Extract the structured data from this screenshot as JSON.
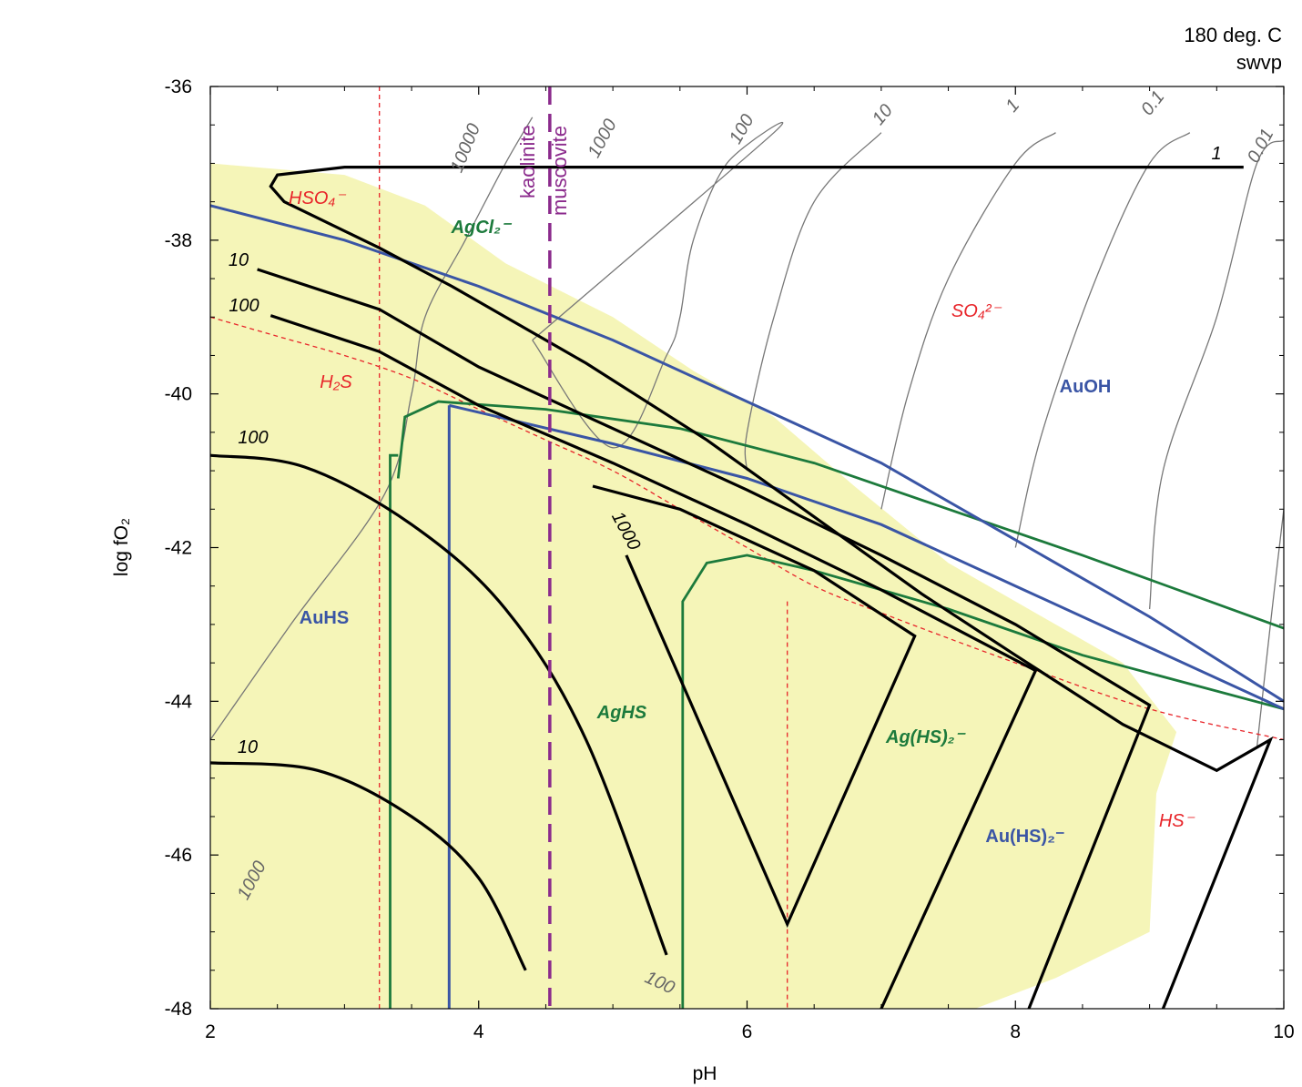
{
  "header": {
    "temperature": "180 deg. C",
    "pressure": "swvp"
  },
  "chart_data": {
    "type": "line",
    "title": "",
    "xlabel": "pH",
    "ylabel": "log fO₂",
    "xlim": [
      2,
      10
    ],
    "ylim": [
      -48,
      -36
    ],
    "xticks": [
      2,
      4,
      6,
      8,
      10
    ],
    "yticks": [
      -36,
      -38,
      -40,
      -42,
      -44,
      -46,
      -48
    ],
    "x_tick_labels": [
      "2",
      "4",
      "6",
      "8",
      "10"
    ],
    "y_tick_labels": [
      "-36",
      "-38",
      "-40",
      "-42",
      "-44",
      "-46",
      "-48"
    ],
    "grid": false,
    "colors": {
      "shaded_region": "#f5f5b8",
      "sulfur_species": "#e8252a",
      "gold_species": "#3a55a5",
      "silver_species": "#1c7a3c",
      "kaolinite_muscovite": "#8b2a8c",
      "solubility_contours": "#777777",
      "concentration_curves": "#000000"
    },
    "shaded_region": [
      [
        2,
        -37.0
      ],
      [
        3.0,
        -37.15
      ],
      [
        3.6,
        -37.55
      ],
      [
        4.2,
        -38.3
      ],
      [
        5.0,
        -39.0
      ],
      [
        5.6,
        -39.7
      ],
      [
        6.2,
        -40.3
      ],
      [
        6.8,
        -41.2
      ],
      [
        7.5,
        -42.2
      ],
      [
        8.2,
        -42.9
      ],
      [
        8.8,
        -43.5
      ],
      [
        9.2,
        -44.4
      ],
      [
        9.05,
        -45.2
      ],
      [
        9.0,
        -47.0
      ],
      [
        8.3,
        -47.6
      ],
      [
        7.7,
        -48
      ],
      [
        2,
        -48
      ]
    ],
    "sulfur_boundaries": [
      {
        "name": "HSO4-/H2S",
        "points": [
          [
            3.26,
            -36
          ],
          [
            3.26,
            -48
          ]
        ]
      },
      {
        "name": "SO4/H2S",
        "points": [
          [
            2,
            -39.0
          ],
          [
            2.5,
            -39.25
          ],
          [
            3.0,
            -39.5
          ],
          [
            3.5,
            -39.8
          ],
          [
            4.0,
            -40.2
          ],
          [
            4.5,
            -40.6
          ],
          [
            5.0,
            -41.0
          ],
          [
            5.5,
            -41.5
          ],
          [
            6.0,
            -42.0
          ],
          [
            6.5,
            -42.5
          ],
          [
            7.0,
            -42.85
          ],
          [
            8.0,
            -43.5
          ],
          [
            9.0,
            -44.1
          ],
          [
            10,
            -44.5
          ]
        ]
      },
      {
        "name": "H2S/HS-",
        "points": [
          [
            6.3,
            -42.7
          ],
          [
            6.3,
            -48
          ]
        ]
      }
    ],
    "kaolinite_muscovite_boundary": {
      "labels": [
        "kaolinite",
        "muscovite"
      ],
      "points": [
        [
          4.53,
          -36
        ],
        [
          4.53,
          -48
        ]
      ]
    },
    "gold_boundaries": [
      {
        "name": "AuHS/Au(HS)2-",
        "points": [
          [
            3.78,
            -40.15
          ],
          [
            3.78,
            -48
          ]
        ]
      },
      {
        "name": "AuOH upper",
        "points": [
          [
            2,
            -37.55
          ],
          [
            3.0,
            -38.0
          ],
          [
            4.0,
            -38.6
          ],
          [
            5.0,
            -39.3
          ],
          [
            6.0,
            -40.1
          ],
          [
            7.0,
            -40.9
          ],
          [
            8.0,
            -41.9
          ],
          [
            9.0,
            -42.9
          ],
          [
            10,
            -44.0
          ]
        ]
      },
      {
        "name": "AuOH lower",
        "points": [
          [
            3.78,
            -40.15
          ],
          [
            5.0,
            -40.65
          ],
          [
            6.0,
            -41.1
          ],
          [
            7.0,
            -41.7
          ],
          [
            8.0,
            -42.5
          ],
          [
            9.0,
            -43.3
          ],
          [
            10,
            -44.1
          ]
        ]
      }
    ],
    "silver_boundaries": [
      {
        "name": "AgCl2-/AgHS upper",
        "points": [
          [
            3.4,
            -41.1
          ],
          [
            3.45,
            -40.3
          ],
          [
            3.7,
            -40.1
          ],
          [
            4.5,
            -40.2
          ],
          [
            5.5,
            -40.45
          ],
          [
            6.5,
            -40.9
          ],
          [
            7.5,
            -41.5
          ],
          [
            8.5,
            -42.1
          ],
          [
            10,
            -43.05
          ]
        ]
      },
      {
        "name": "AgHS left",
        "points": [
          [
            3.34,
            -48
          ],
          [
            3.34,
            -40.8
          ],
          [
            3.4,
            -40.8
          ]
        ]
      },
      {
        "name": "Ag(HS)2- left",
        "points": [
          [
            5.52,
            -48
          ],
          [
            5.52,
            -42.7
          ],
          [
            5.7,
            -42.2
          ],
          [
            6.0,
            -42.1
          ],
          [
            6.5,
            -42.3
          ],
          [
            7.5,
            -42.8
          ],
          [
            8.5,
            -43.4
          ],
          [
            10,
            -44.1
          ]
        ]
      }
    ],
    "solubility_contours": [
      {
        "name": "10000",
        "label": "10000",
        "points": [
          [
            2,
            -44.5
          ],
          [
            2.6,
            -43.0
          ],
          [
            3.3,
            -41.3
          ],
          [
            3.5,
            -40.0
          ],
          [
            3.6,
            -39.0
          ],
          [
            3.9,
            -38.0
          ],
          [
            4.2,
            -37.0
          ],
          [
            4.4,
            -36.4
          ]
        ]
      },
      {
        "name": "1000",
        "label": "1000",
        "points": [
          [
            4.4,
            -39.3
          ],
          [
            5.0,
            -40.7
          ],
          [
            5.4,
            -39.5
          ],
          [
            5.5,
            -39.0
          ],
          [
            5.6,
            -38.0
          ],
          [
            5.85,
            -37.0
          ],
          [
            6.2,
            -36.6
          ],
          [
            4.4,
            -39.3
          ]
        ]
      },
      {
        "name": "100",
        "label": "100",
        "points": [
          [
            6.0,
            -41.0
          ],
          [
            6.0,
            -40.5
          ],
          [
            6.2,
            -39.0
          ],
          [
            6.5,
            -37.5
          ],
          [
            7.0,
            -36.6
          ]
        ]
      },
      {
        "name": "10",
        "label": "10",
        "points": [
          [
            7.0,
            -41.5
          ],
          [
            7.2,
            -40.0
          ],
          [
            7.5,
            -38.5
          ],
          [
            8.0,
            -37.0
          ],
          [
            8.3,
            -36.6
          ]
        ]
      },
      {
        "name": "1",
        "label": "1",
        "points": [
          [
            8.0,
            -42.0
          ],
          [
            8.2,
            -40.5
          ],
          [
            8.6,
            -38.5
          ],
          [
            9.0,
            -37.0
          ],
          [
            9.3,
            -36.6
          ]
        ]
      },
      {
        "name": "0.1",
        "label": "0.1",
        "points": [
          [
            9.0,
            -42.8
          ],
          [
            9.1,
            -41.0
          ],
          [
            9.5,
            -39.0
          ],
          [
            9.8,
            -37.0
          ],
          [
            10.0,
            -36.7
          ]
        ]
      },
      {
        "name": "0.01",
        "label": "0.01",
        "points": [
          [
            9.8,
            -44.6
          ],
          [
            9.9,
            -43.0
          ],
          [
            10,
            -41.5
          ]
        ]
      }
    ],
    "concentration_curves": [
      {
        "name": "1",
        "label": "1",
        "points": [
          [
            9.7,
            -37.05
          ],
          [
            6.0,
            -37.05
          ],
          [
            3.0,
            -37.05
          ],
          [
            2.5,
            -37.15
          ],
          [
            2.45,
            -37.3
          ],
          [
            2.55,
            -37.5
          ],
          [
            3.26,
            -38.1
          ],
          [
            3.8,
            -38.6
          ],
          [
            4.8,
            -39.6
          ],
          [
            5.7,
            -40.6
          ],
          [
            6.5,
            -41.6
          ],
          [
            7.3,
            -42.6
          ],
          [
            8.0,
            -43.4
          ],
          [
            8.8,
            -44.3
          ],
          [
            9.5,
            -44.9
          ],
          [
            9.9,
            -44.5
          ],
          [
            9.1,
            -48
          ]
        ]
      },
      {
        "name": "10",
        "label": "10",
        "points": [
          [
            2.35,
            -38.38
          ],
          [
            3.26,
            -38.9
          ],
          [
            4.0,
            -39.65
          ],
          [
            5.0,
            -40.45
          ],
          [
            6.0,
            -41.25
          ],
          [
            7.0,
            -42.1
          ],
          [
            8.0,
            -43.0
          ],
          [
            9.0,
            -44.05
          ],
          [
            8.1,
            -48
          ]
        ]
      },
      {
        "name": "100",
        "label": "100",
        "points": [
          [
            2.45,
            -38.98
          ],
          [
            3.26,
            -39.45
          ],
          [
            4.0,
            -40.15
          ],
          [
            5.0,
            -40.9
          ],
          [
            6.0,
            -41.7
          ],
          [
            7.0,
            -42.55
          ],
          [
            8.15,
            -43.6
          ],
          [
            7.0,
            -48
          ]
        ]
      },
      {
        "name": "1000",
        "label": "1000",
        "points": [
          [
            4.85,
            -41.2
          ],
          [
            5.5,
            -41.5
          ],
          [
            6.5,
            -42.3
          ],
          [
            7.25,
            -43.15
          ],
          [
            6.3,
            -46.9
          ],
          [
            5.1,
            -42.1
          ]
        ]
      },
      {
        "name": "100 lower",
        "label": "100",
        "points": [
          [
            2,
            -40.8
          ],
          [
            2.7,
            -40.95
          ],
          [
            3.5,
            -41.7
          ],
          [
            4.2,
            -42.8
          ],
          [
            4.8,
            -44.5
          ],
          [
            5.4,
            -47.3
          ]
        ]
      },
      {
        "name": "10 lower",
        "label": "10",
        "points": [
          [
            2,
            -44.8
          ],
          [
            2.8,
            -44.9
          ],
          [
            3.5,
            -45.5
          ],
          [
            4.0,
            -46.3
          ],
          [
            4.35,
            -47.5
          ]
        ]
      }
    ],
    "field_labels": {
      "AuHS": "AuHS",
      "AuOH": "AuOH",
      "AgCl2": "AgCl₂⁻",
      "AgHS": "AgHS",
      "AgHS2": "Ag(HS)₂⁻",
      "AuHS2": "Au(HS)₂⁻"
    },
    "sulfur_labels": {
      "HSO4": "HSO₄⁻",
      "H2S": "H₂S",
      "SO4": "SO₄²⁻",
      "HS": "HS⁻"
    }
  }
}
